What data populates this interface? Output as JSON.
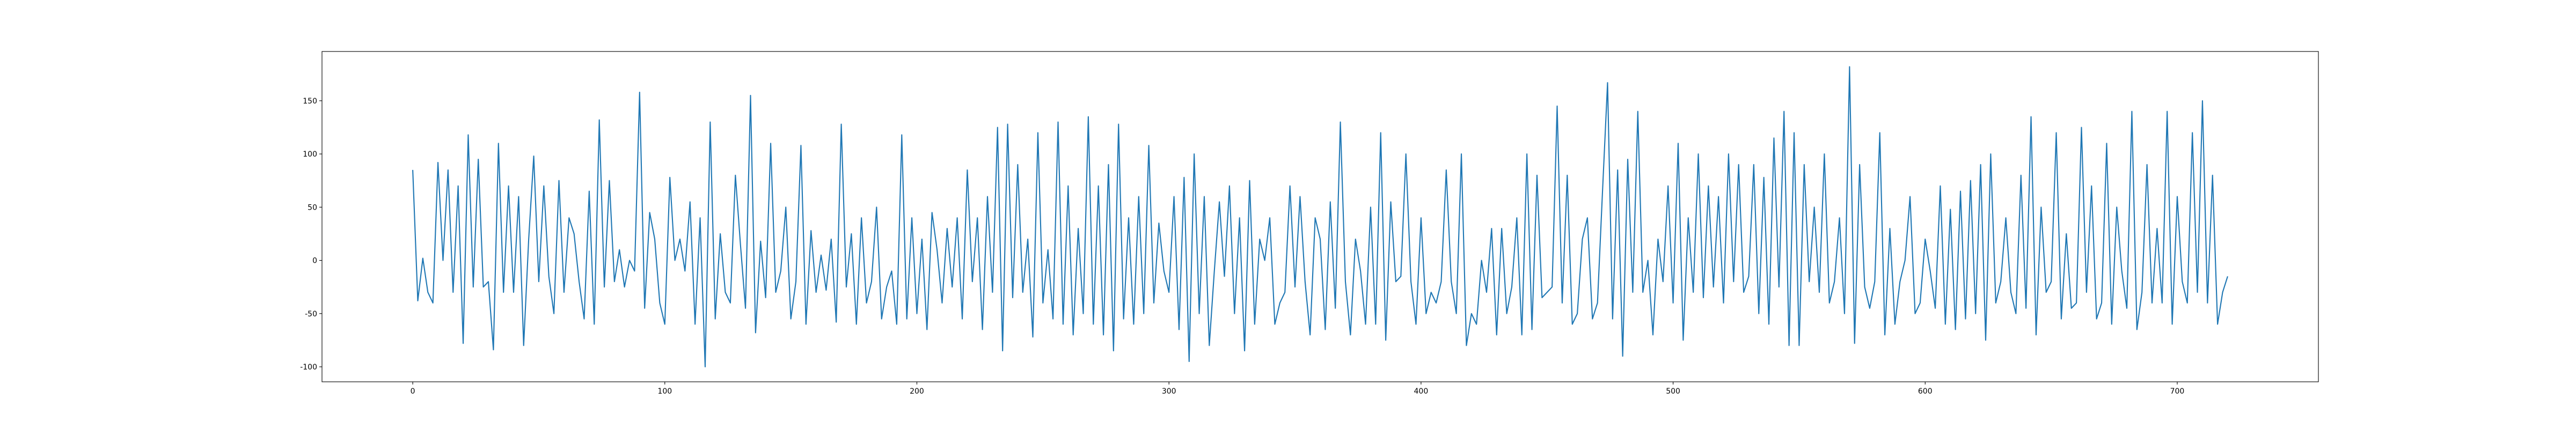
{
  "chart_data": {
    "type": "line",
    "x": [
      0,
      2,
      4,
      6,
      8,
      10,
      12,
      14,
      16,
      18,
      20,
      22,
      24,
      26,
      28,
      30,
      32,
      34,
      36,
      38,
      40,
      42,
      44,
      46,
      48,
      50,
      52,
      54,
      56,
      58,
      60,
      62,
      64,
      66,
      68,
      70,
      72,
      74,
      76,
      78,
      80,
      82,
      84,
      86,
      88,
      90,
      92,
      94,
      96,
      98,
      100,
      102,
      104,
      106,
      108,
      110,
      112,
      114,
      116,
      118,
      120,
      122,
      124,
      126,
      128,
      130,
      132,
      134,
      136,
      138,
      140,
      142,
      144,
      146,
      148,
      150,
      152,
      154,
      156,
      158,
      160,
      162,
      164,
      166,
      168,
      170,
      172,
      174,
      176,
      178,
      180,
      182,
      184,
      186,
      188,
      190,
      192,
      194,
      196,
      198,
      200,
      202,
      204,
      206,
      208,
      210,
      212,
      214,
      216,
      218,
      220,
      222,
      224,
      226,
      228,
      230,
      232,
      234,
      236,
      238,
      240,
      242,
      244,
      246,
      248,
      250,
      252,
      254,
      256,
      258,
      260,
      262,
      264,
      266,
      268,
      270,
      272,
      274,
      276,
      278,
      280,
      282,
      284,
      286,
      288,
      290,
      292,
      294,
      296,
      298,
      300,
      302,
      304,
      306,
      308,
      310,
      312,
      314,
      316,
      318,
      320,
      322,
      324,
      326,
      328,
      330,
      332,
      334,
      336,
      338,
      340,
      342,
      344,
      346,
      348,
      350,
      352,
      354,
      356,
      358,
      360,
      362,
      364,
      366,
      368,
      370,
      372,
      374,
      376,
      378,
      380,
      382,
      384,
      386,
      388,
      390,
      392,
      394,
      396,
      398,
      400,
      402,
      404,
      406,
      408,
      410,
      412,
      414,
      416,
      418,
      420,
      422,
      424,
      426,
      428,
      430,
      432,
      434,
      436,
      438,
      440,
      442,
      444,
      446,
      448,
      450,
      452,
      454,
      456,
      458,
      460,
      462,
      464,
      466,
      468,
      470,
      472,
      474,
      476,
      478,
      480,
      482,
      484,
      486,
      488,
      490,
      492,
      494,
      496,
      498,
      500,
      502,
      504,
      506,
      508,
      510,
      512,
      514,
      516,
      518,
      520,
      522,
      524,
      526,
      528,
      530,
      532,
      534,
      536,
      538,
      540,
      542,
      544,
      546,
      548,
      550,
      552,
      554,
      556,
      558,
      560,
      562,
      564,
      566,
      568,
      570,
      572,
      574,
      576,
      578,
      580,
      582,
      584,
      586,
      588,
      590,
      592,
      594,
      596,
      598,
      600,
      602,
      604,
      606,
      608,
      610,
      612,
      614,
      616,
      618,
      620,
      622,
      624,
      626,
      628,
      630,
      632,
      634,
      636,
      638,
      640,
      642,
      644,
      646,
      648,
      650,
      652,
      654,
      656,
      658,
      660,
      662,
      664,
      666,
      668,
      670,
      672,
      674,
      676,
      678,
      680,
      682,
      684,
      686,
      688,
      690,
      692,
      694,
      696,
      698,
      700,
      702,
      704,
      706,
      708,
      710,
      712,
      714,
      716,
      718,
      720
    ],
    "series": [
      {
        "color": "#1f77b4",
        "values": [
          85,
          -38,
          2,
          -30,
          -40,
          92,
          0,
          85,
          -30,
          70,
          -78,
          118,
          -25,
          95,
          -25,
          -20,
          -84,
          110,
          -30,
          70,
          -30,
          60,
          -80,
          20,
          98,
          -20,
          70,
          -15,
          -50,
          75,
          -30,
          40,
          25,
          -20,
          -55,
          65,
          -60,
          132,
          -25,
          75,
          -20,
          10,
          -25,
          0,
          -10,
          158,
          -45,
          45,
          20,
          -40,
          -60,
          78,
          0,
          20,
          -10,
          55,
          -60,
          40,
          -100,
          130,
          -55,
          25,
          -30,
          -40,
          80,
          15,
          -45,
          155,
          -68,
          18,
          -35,
          110,
          -30,
          -10,
          50,
          -55,
          -20,
          108,
          -60,
          28,
          -30,
          5,
          -28,
          20,
          -58,
          128,
          -25,
          25,
          -60,
          40,
          -40,
          -20,
          50,
          -55,
          -25,
          -10,
          -60,
          118,
          -55,
          40,
          -50,
          20,
          -65,
          45,
          10,
          -40,
          30,
          -25,
          40,
          -55,
          85,
          -20,
          40,
          -65,
          60,
          -30,
          125,
          -85,
          128,
          -35,
          90,
          -30,
          20,
          -72,
          120,
          -40,
          10,
          -55,
          130,
          -60,
          70,
          -70,
          30,
          -50,
          135,
          -60,
          70,
          -70,
          90,
          -85,
          128,
          -55,
          40,
          -60,
          60,
          -50,
          108,
          -40,
          35,
          -10,
          -30,
          60,
          -65,
          78,
          -95,
          100,
          -50,
          60,
          -80,
          -10,
          55,
          -15,
          70,
          -50,
          40,
          -85,
          75,
          -60,
          20,
          0,
          40,
          -60,
          -40,
          -30,
          70,
          -25,
          60,
          -20,
          -70,
          40,
          20,
          -65,
          55,
          -45,
          130,
          -20,
          -70,
          20,
          -10,
          -60,
          50,
          -60,
          120,
          -75,
          55,
          -20,
          -15,
          100,
          -20,
          -60,
          40,
          -50,
          -30,
          -40,
          -20,
          85,
          -20,
          -50,
          100,
          -80,
          -50,
          -60,
          0,
          -30,
          30,
          -70,
          30,
          -50,
          -25,
          40,
          -70,
          100,
          -65,
          80,
          -35,
          -30,
          -25,
          145,
          -40,
          80,
          -60,
          -50,
          20,
          40,
          -55,
          -40,
          65,
          167,
          -55,
          85,
          -90,
          95,
          -30,
          140,
          -30,
          0,
          -70,
          20,
          -20,
          70,
          -40,
          110,
          -75,
          40,
          -30,
          100,
          -35,
          70,
          -25,
          60,
          -40,
          100,
          -20,
          90,
          -30,
          -15,
          90,
          -50,
          78,
          -60,
          115,
          -25,
          140,
          -80,
          120,
          -80,
          90,
          -20,
          50,
          -30,
          100,
          -40,
          -20,
          40,
          -50,
          182,
          -78,
          90,
          -25,
          -45,
          -20,
          120,
          -70,
          30,
          -60,
          -20,
          0,
          60,
          -50,
          -40,
          20,
          -10,
          -45,
          70,
          -60,
          48,
          -65,
          65,
          -55,
          75,
          -50,
          90,
          -75,
          100,
          -40,
          -20,
          40,
          -30,
          -50,
          80,
          -45,
          135,
          -70,
          50,
          -30,
          -20,
          120,
          -55,
          25,
          -45,
          -40,
          125,
          -30,
          70,
          -55,
          -40,
          110,
          -60,
          50,
          -10,
          -45,
          140,
          -65,
          -30,
          90,
          -40,
          30,
          -40,
          140,
          -60,
          60,
          -20,
          -40,
          120,
          -30,
          150,
          -40,
          80,
          -60,
          -30,
          -15
        ]
      }
    ],
    "xlim": [
      -36,
      756
    ],
    "ylim": [
      -114.1,
      196.3
    ],
    "xticks": [
      0,
      100,
      200,
      300,
      400,
      500,
      600,
      700
    ],
    "yticks": [
      -100,
      -50,
      0,
      50,
      100,
      150
    ]
  }
}
